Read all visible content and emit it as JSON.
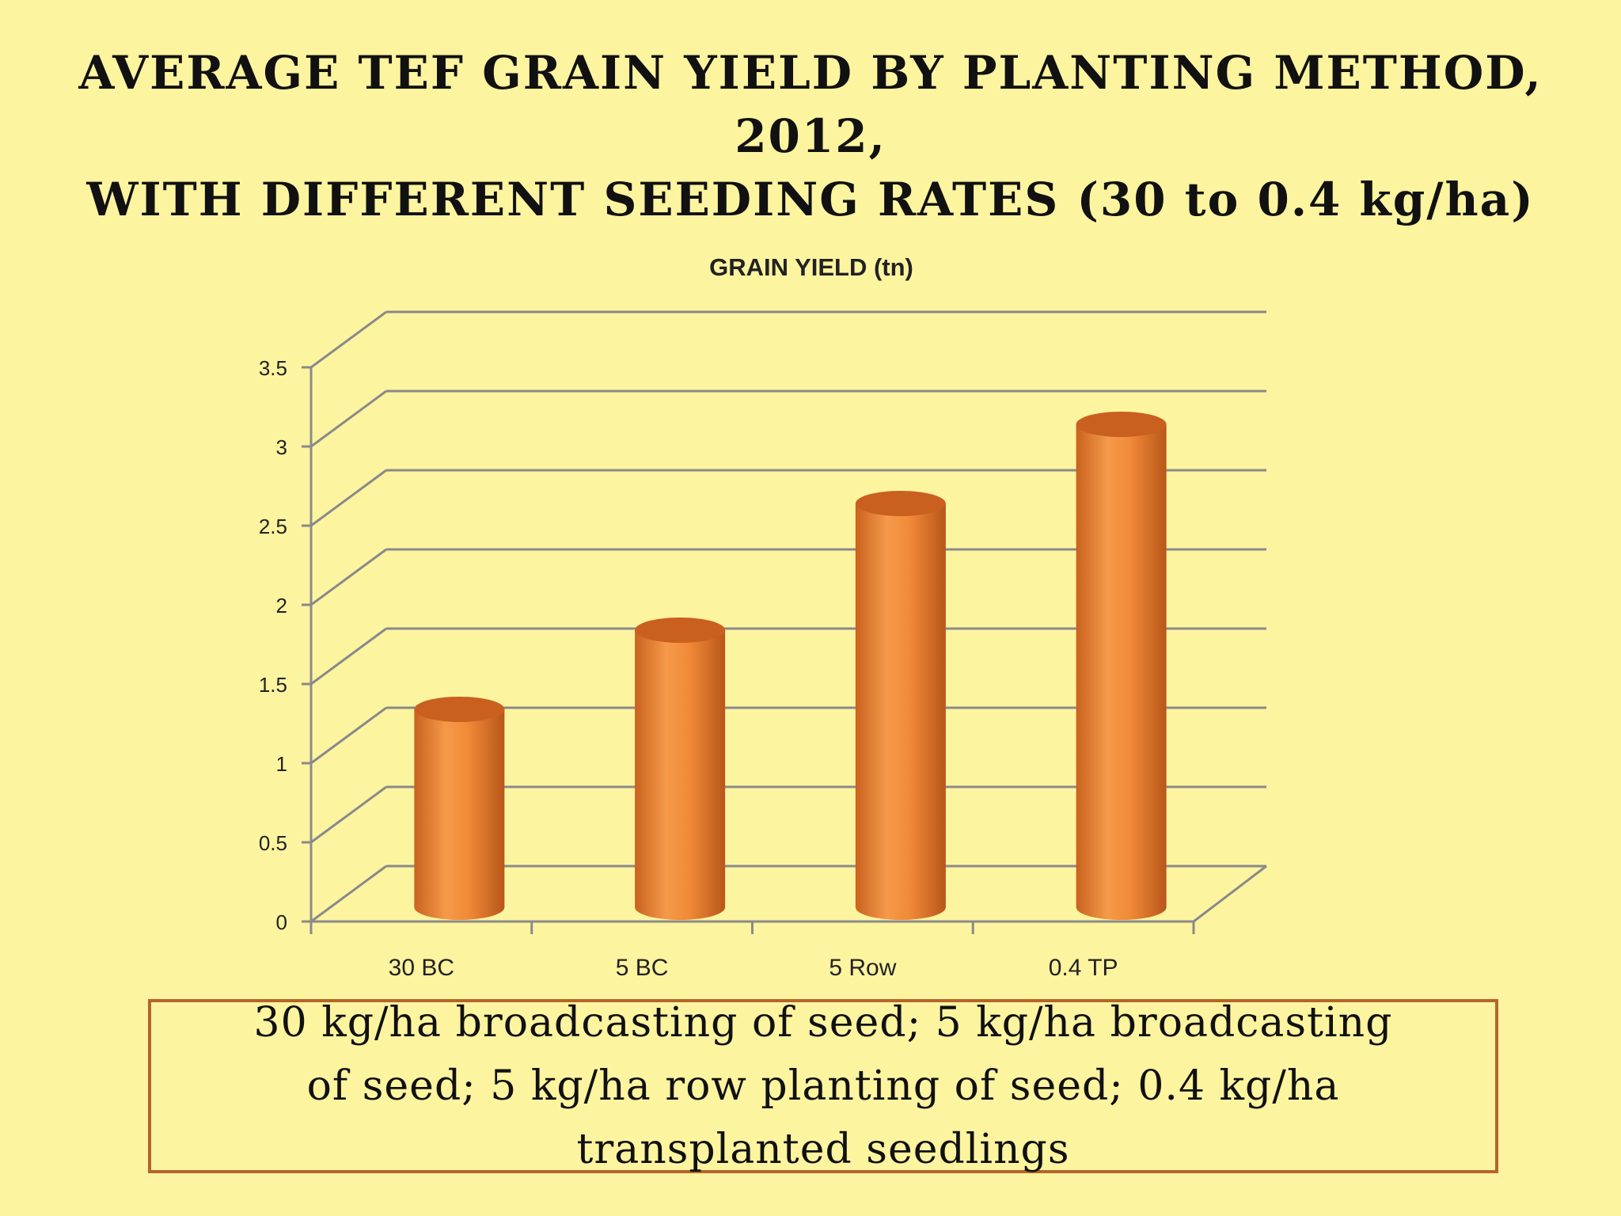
{
  "slide": {
    "title_line1": "AVERAGE TEF GRAIN YIELD BY PLANTING METHOD,",
    "title_line2": "2012,",
    "title_line3": "WITH DIFFERENT SEEDING RATES (30 to 0.4  kg/ha)",
    "caption": "30 kg/ha broadcasting of seed; 5 kg/ha broadcasting of seed;  5 kg/ha row planting of seed; 0.4 kg/ha transplanted seedlings"
  },
  "chart_data": {
    "type": "bar",
    "title": "GRAIN YIELD (tn)",
    "categories": [
      "30 BC",
      "5 BC",
      "5 Row",
      "0.4 TP"
    ],
    "values": [
      1.3,
      1.8,
      2.6,
      3.1
    ],
    "ylim": [
      0,
      3.5
    ],
    "yticks": [
      "0",
      "0.5",
      "1",
      "1.5",
      "2",
      "2.5",
      "3",
      "3.5"
    ],
    "xlabel": "",
    "ylabel": "",
    "grid": true,
    "bar_color": "#f08a38"
  }
}
